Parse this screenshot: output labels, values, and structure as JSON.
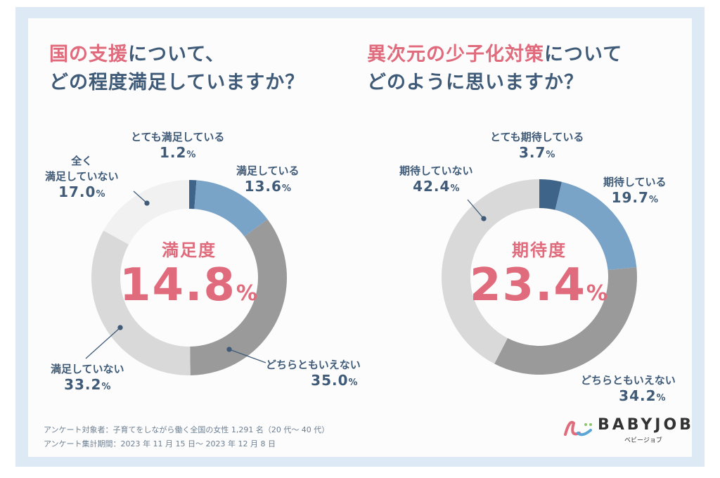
{
  "chart_data": [
    {
      "type": "pie",
      "donut": true,
      "title_highlight": "国の支援",
      "title_rest_line1": "について、",
      "title_line2": "どの程度満足していますか？",
      "center_label": "満足度",
      "center_value": "14.8",
      "unit": "%",
      "slices": [
        {
          "label": "とても満足している",
          "value": 1.2,
          "value_text": "1.2",
          "color": "#3f6489"
        },
        {
          "label": "満足している",
          "value": 13.6,
          "value_text": "13.6",
          "color": "#7aa3c8"
        },
        {
          "label": "どちらともいえない",
          "value": 35.0,
          "value_text": "35.0",
          "color": "#9a9a9a"
        },
        {
          "label": "満足していない",
          "value": 33.2,
          "value_text": "33.2",
          "color": "#d9d9d9"
        },
        {
          "label": "全く満足していない",
          "label_line1": "全く",
          "label_line2": "満足していない",
          "value": 17.0,
          "value_text": "17.0",
          "color": "#f1f1f1"
        }
      ]
    },
    {
      "type": "pie",
      "donut": true,
      "title_highlight": "異次元の少子化対策",
      "title_rest_line1": "について",
      "title_line2": "どのように思いますか？",
      "center_label": "期待度",
      "center_value": "23.4",
      "unit": "%",
      "slices": [
        {
          "label": "とても期待している",
          "value": 3.7,
          "value_text": "3.7",
          "color": "#3f6489"
        },
        {
          "label": "期待している",
          "value": 19.7,
          "value_text": "19.7",
          "color": "#7aa3c8"
        },
        {
          "label": "どちらともいえない",
          "value": 34.2,
          "value_text": "34.2",
          "color": "#9a9a9a"
        },
        {
          "label": "期待していない",
          "value": 42.4,
          "value_text": "42.4",
          "color": "#d9d9d9"
        }
      ]
    }
  ],
  "footer": {
    "target": "アンケート対象者：子育てをしながら働く全国の女性 1,291 名（20 代～ 40 代）",
    "period": "アンケート集計期間：2023 年 11 月 15 日～ 2023 年 12 月 8 日"
  },
  "logo": {
    "text": "BABYJOB",
    "kana": "ベビージョブ"
  },
  "colors": {
    "accent": "#e06b7c",
    "text": "#3f5b78",
    "frame": "#dde9f5"
  }
}
